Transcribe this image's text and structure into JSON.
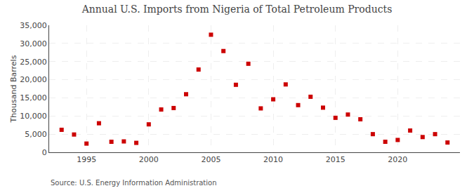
{
  "chart_data": {
    "type": "scatter",
    "title": "Annual U.S. Imports from Nigeria of Total Petroleum Products",
    "ylabel": "Thousand Barrels",
    "annotations": [
      "Source: U.S. Energy Information Administration"
    ],
    "x": [
      1993,
      1994,
      1995,
      1996,
      1997,
      1998,
      1999,
      2000,
      2001,
      2002,
      2003,
      2004,
      2005,
      2006,
      2007,
      2008,
      2009,
      2010,
      2011,
      2012,
      2013,
      2014,
      2015,
      2016,
      2017,
      2018,
      2019,
      2020,
      2021,
      2022,
      2023,
      2024
    ],
    "values": [
      6200,
      4900,
      2400,
      8000,
      2900,
      3000,
      2600,
      7700,
      11800,
      12200,
      16000,
      22800,
      32400,
      27900,
      18600,
      24400,
      12100,
      14600,
      18700,
      13000,
      15300,
      12300,
      9500,
      10400,
      9100,
      5000,
      2900,
      3400,
      6000,
      4200,
      5000,
      2700
    ],
    "color": "#cc0000",
    "marker": "square",
    "xlim": [
      1992,
      2025
    ],
    "xticks": [
      1995,
      2000,
      2005,
      2010,
      2015,
      2020
    ],
    "ylim": [
      0,
      35000
    ],
    "yticks": [
      0,
      {
        "value": 5000,
        "label": "5,000"
      },
      {
        "value": 10000,
        "label": "10,000"
      },
      {
        "value": 15000,
        "label": "15,000"
      },
      {
        "value": 20000,
        "label": "20,000"
      },
      {
        "value": 25000,
        "label": "25,000"
      },
      {
        "value": 30000,
        "label": "30,000"
      },
      {
        "value": 35000,
        "label": "35,000"
      }
    ],
    "grid": true
  }
}
